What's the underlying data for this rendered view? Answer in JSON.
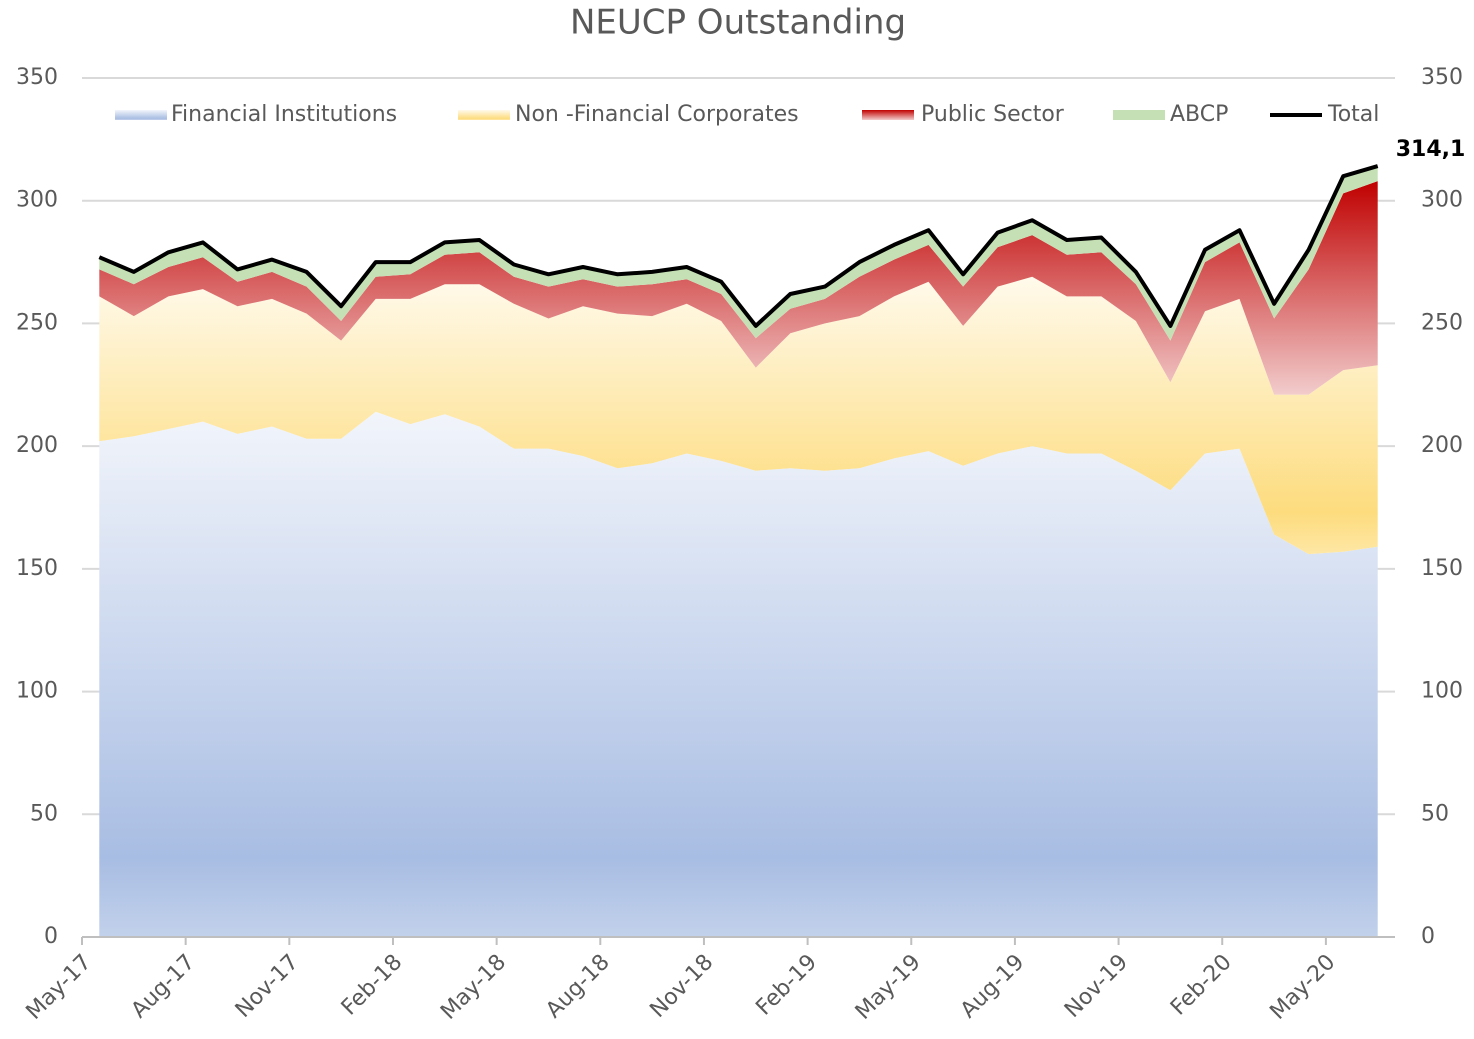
{
  "chart_data": {
    "type": "stacked_area",
    "title": "NEUCP Outstanding",
    "categories": [
      "May-17",
      null,
      null,
      "Aug-17",
      null,
      null,
      "Nov-17",
      null,
      null,
      "Feb-18",
      null,
      null,
      "May-18",
      null,
      null,
      "Aug-18",
      null,
      null,
      "Nov-18",
      null,
      null,
      "Feb-19",
      null,
      null,
      "May-19",
      null,
      null,
      "Aug-19",
      null,
      null,
      "Nov-19",
      null,
      null,
      "Feb-20",
      null,
      null,
      "May-20",
      null
    ],
    "ylim": [
      0,
      350
    ],
    "yticks": [
      0,
      50,
      100,
      150,
      200,
      250,
      300,
      350
    ],
    "y2lim": [
      0,
      350
    ],
    "y2ticks": [
      0,
      50,
      100,
      150,
      200,
      250,
      300,
      350
    ],
    "grid": true,
    "legend": "top",
    "series": [
      {
        "name": "Financial Institutions",
        "color": "#a8bde3",
        "gradient": "light-top",
        "values": [
          202,
          204,
          207,
          210,
          205,
          208,
          203,
          203,
          214,
          209,
          213,
          208,
          199,
          199,
          196,
          191,
          193,
          197,
          194,
          190,
          191,
          190,
          191,
          195,
          198,
          192,
          197,
          200,
          197,
          197,
          190,
          182,
          197,
          199,
          164,
          156,
          157,
          159
        ]
      },
      {
        "name": "Non -Financial Corporates",
        "color": "#fddc7e",
        "gradient": "light-top",
        "values": [
          59,
          49,
          54,
          54,
          52,
          52,
          51,
          40,
          46,
          51,
          53,
          58,
          59,
          53,
          61,
          63,
          60,
          61,
          57,
          42,
          55,
          60,
          62,
          66,
          69,
          57,
          68,
          69,
          64,
          64,
          61,
          44,
          58,
          61,
          57,
          65,
          74,
          74
        ]
      },
      {
        "name": "Public Sector",
        "color": "#c00000",
        "gradient": "light-bottom",
        "values": [
          11,
          13,
          12,
          13,
          10,
          11,
          11,
          8,
          9,
          10,
          12,
          13,
          11,
          13,
          11,
          11,
          13,
          10,
          11,
          12,
          10,
          10,
          16,
          15,
          15,
          16,
          16,
          17,
          17,
          18,
          15,
          17,
          20,
          23,
          31,
          51,
          72,
          75
        ]
      },
      {
        "name": "ABCP",
        "color": "#c5e0b4",
        "gradient": "flat",
        "values": [
          5,
          5,
          6,
          6,
          5,
          5,
          6,
          6,
          6,
          5,
          5,
          5,
          5,
          5,
          5,
          5,
          5,
          5,
          5,
          5,
          6,
          5,
          6,
          6,
          6,
          5,
          6,
          6,
          6,
          6,
          5,
          6,
          5,
          5,
          6,
          8,
          7,
          6.1
        ]
      },
      {
        "name": "Total",
        "color": "#000000",
        "kind": "line",
        "values": [
          277,
          271,
          279,
          283,
          272,
          276,
          271,
          257,
          275,
          275,
          283,
          284,
          274,
          270,
          273,
          270,
          271,
          273,
          267,
          249,
          262,
          265,
          275,
          282,
          288,
          270,
          287,
          292,
          284,
          285,
          271,
          249,
          280,
          288,
          258,
          280,
          310,
          314.1
        ],
        "value_labels": [
          null,
          null,
          null,
          null,
          null,
          null,
          null,
          null,
          null,
          null,
          null,
          null,
          null,
          null,
          null,
          null,
          null,
          null,
          null,
          null,
          null,
          null,
          null,
          null,
          null,
          null,
          null,
          null,
          null,
          null,
          null,
          null,
          null,
          null,
          null,
          null,
          null,
          "314,1"
        ]
      }
    ]
  }
}
